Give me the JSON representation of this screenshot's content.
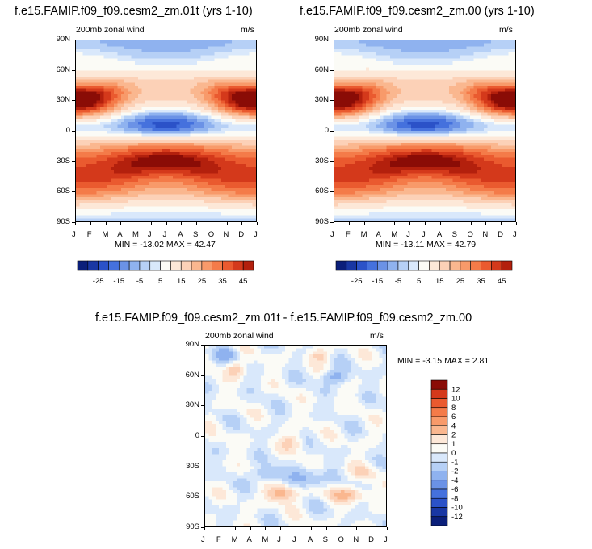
{
  "colors": {
    "pos": [
      "#fde8d8",
      "#fcd1b7",
      "#fab78f",
      "#f89a6a",
      "#f47b49",
      "#ea5a2f",
      "#d4391b",
      "#b3200d",
      "#8a0c06"
    ],
    "neg": [
      "#d9e8fb",
      "#b6d0f6",
      "#8fb2ef",
      "#6b92e6",
      "#4571dd",
      "#2b52c8",
      "#1937a3",
      "#0b1f7a"
    ],
    "zero": "#fbfbf6"
  },
  "chart_data": [
    {
      "type": "heatmap",
      "title": "f.e15.FAMIP.f09_f09.cesm2_zm.01t (yrs 1-10)",
      "subtitle_left": "200mb zonal wind",
      "subtitle_right": "m/s",
      "stats": "MIN = -13.02 MAX =  42.47",
      "x_ticks": [
        "J",
        "F",
        "M",
        "A",
        "M",
        "J",
        "J",
        "A",
        "S",
        "O",
        "N",
        "D",
        "J"
      ],
      "y_ticks": [
        "90N",
        "60N",
        "30N",
        "0",
        "30S",
        "60S",
        "90S"
      ],
      "colorbar_labels": [
        "-25",
        "-15",
        "-5",
        "5",
        "15",
        "25",
        "35",
        "45"
      ],
      "colorbar_levels": [
        -30,
        -25,
        -20,
        -15,
        -10,
        -5,
        0,
        5,
        10,
        15,
        20,
        25,
        30,
        35,
        40,
        45
      ]
    },
    {
      "type": "heatmap",
      "title": "f.e15.FAMIP.f09_f09.cesm2_zm.00 (yrs 1-10)",
      "subtitle_left": "200mb zonal wind",
      "subtitle_right": "m/s",
      "stats": "MIN = -13.11 MAX =  42.79",
      "x_ticks": [
        "J",
        "F",
        "M",
        "A",
        "M",
        "J",
        "J",
        "A",
        "S",
        "O",
        "N",
        "D",
        "J"
      ],
      "y_ticks": [
        "90N",
        "60N",
        "30N",
        "0",
        "30S",
        "60S",
        "90S"
      ],
      "colorbar_labels": [
        "-25",
        "-15",
        "-5",
        "5",
        "15",
        "25",
        "35",
        "45"
      ],
      "colorbar_levels": [
        -30,
        -25,
        -20,
        -15,
        -10,
        -5,
        0,
        5,
        10,
        15,
        20,
        25,
        30,
        35,
        40,
        45
      ]
    },
    {
      "type": "heatmap",
      "title": "f.e15.FAMIP.f09_f09.cesm2_zm.01t - f.e15.FAMIP.f09_f09.cesm2_zm.00",
      "subtitle_left": "200mb zonal wind",
      "subtitle_right": "m/s",
      "stats": "MIN = -3.15 MAX =  2.81",
      "x_ticks": [
        "J",
        "F",
        "M",
        "A",
        "M",
        "J",
        "J",
        "A",
        "S",
        "O",
        "N",
        "D",
        "J"
      ],
      "y_ticks": [
        "90N",
        "60N",
        "30N",
        "0",
        "30S",
        "60S",
        "90S"
      ],
      "colorbar_labels": [
        "12",
        "10",
        "8",
        "6",
        "4",
        "2",
        "1",
        "0",
        "-1",
        "-2",
        "-4",
        "-6",
        "-8",
        "-10",
        "-12"
      ],
      "colorbar_levels": [
        -12,
        -10,
        -8,
        -6,
        -4,
        -2,
        -1,
        0,
        1,
        2,
        4,
        6,
        8,
        10,
        12
      ]
    }
  ]
}
